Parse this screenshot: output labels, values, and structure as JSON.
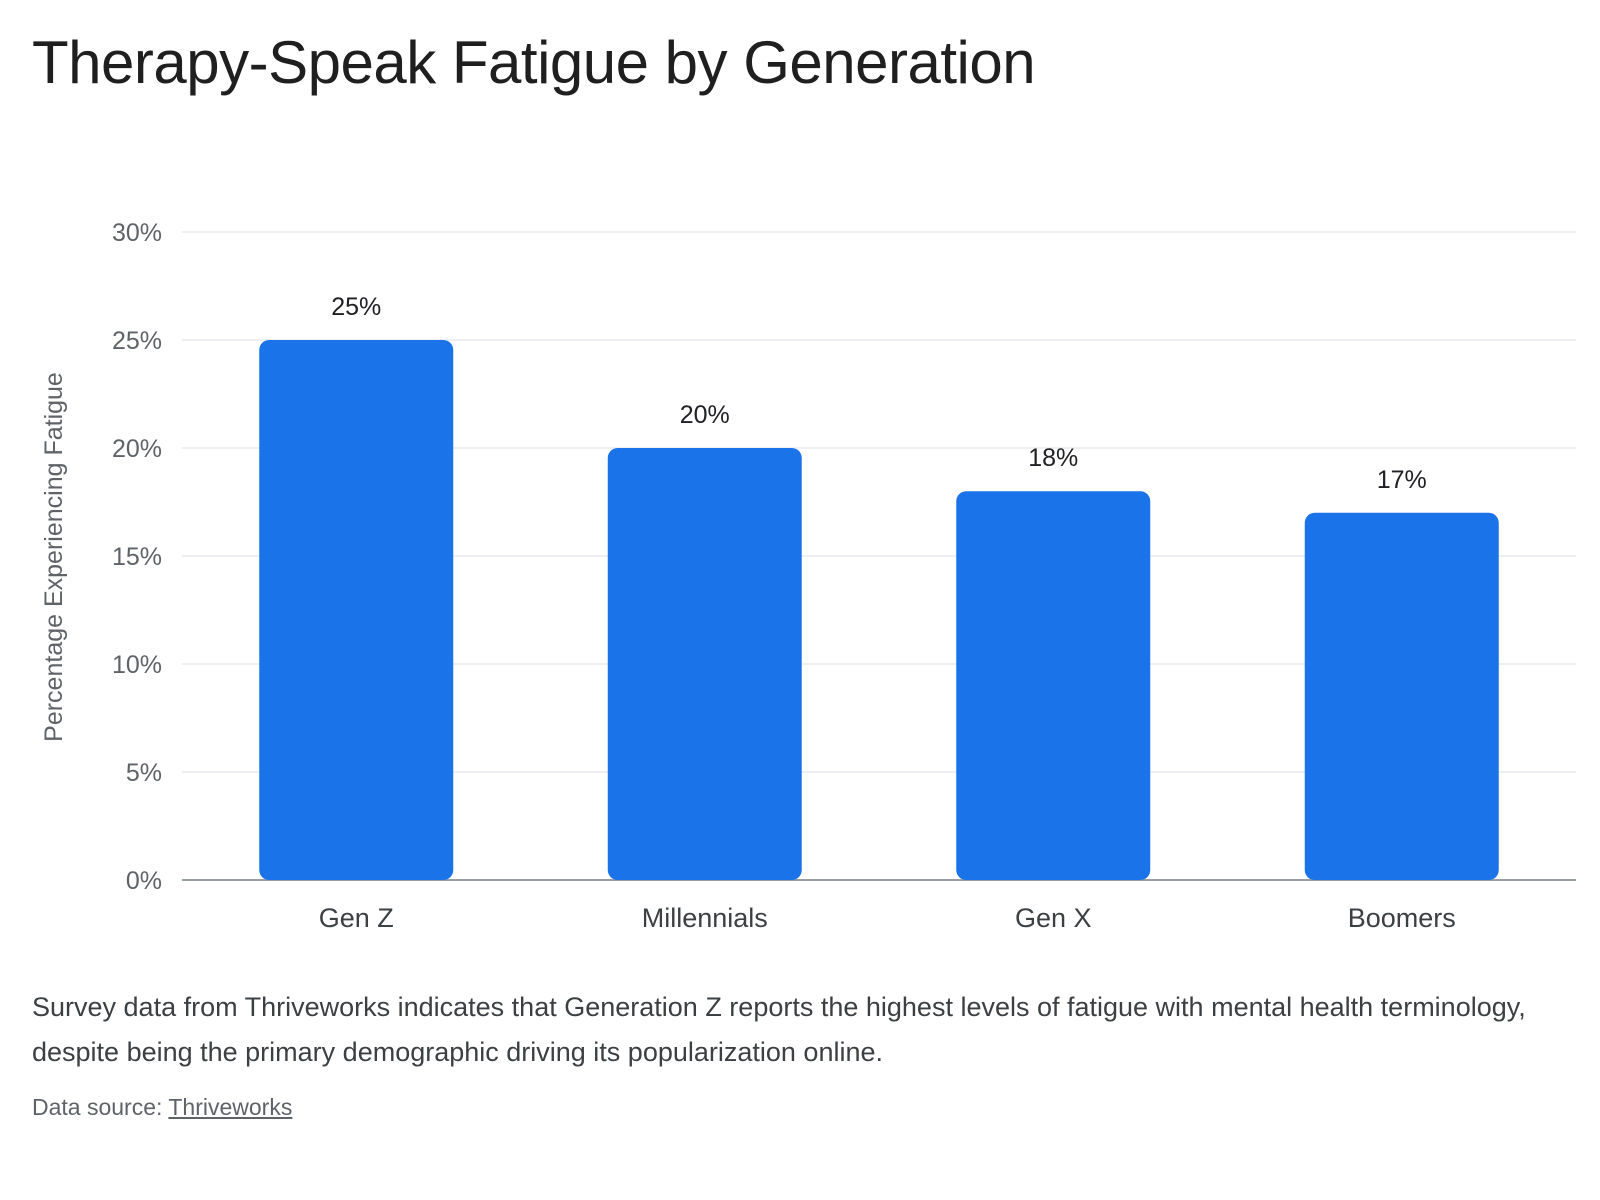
{
  "header": {
    "title": "Therapy-Speak Fatigue by Generation"
  },
  "chart_data": {
    "type": "bar",
    "title": "Therapy-Speak Fatigue by Generation",
    "xlabel": "",
    "ylabel": "Percentage Experiencing Fatigue",
    "categories": [
      "Gen Z",
      "Millennials",
      "Gen X",
      "Boomers"
    ],
    "values": [
      25,
      20,
      18,
      17
    ],
    "data_labels": [
      "25%",
      "20%",
      "18%",
      "17%"
    ],
    "ylim": [
      0,
      30
    ],
    "yticks": [
      0,
      5,
      10,
      15,
      20,
      25,
      30
    ],
    "ytick_labels": [
      "0%",
      "5%",
      "10%",
      "15%",
      "20%",
      "25%",
      "30%"
    ],
    "grid": true,
    "legend": "none",
    "bar_color": "#1a73e8"
  },
  "footer": {
    "caption": "Survey data from Thriveworks indicates that Generation Z reports the highest levels of fatigue with mental health terminology, despite being the primary demographic driving its popularization online.",
    "source_prefix": "Data source: ",
    "source_link": "Thriveworks"
  }
}
